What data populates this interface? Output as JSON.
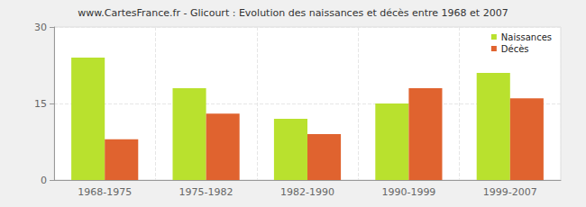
{
  "chart_data": {
    "type": "bar",
    "title": "www.CartesFrance.fr - Glicourt : Evolution des naissances et décès entre 1968 et 2007",
    "categories": [
      "1968-1975",
      "1975-1982",
      "1982-1990",
      "1990-1999",
      "1999-2007"
    ],
    "series": [
      {
        "name": "Naissances",
        "color": "#b9e12e",
        "values": [
          24,
          18,
          12,
          15,
          21
        ]
      },
      {
        "name": "Décès",
        "color": "#e0632f",
        "values": [
          8,
          13,
          9,
          18,
          16
        ]
      }
    ],
    "ylim": [
      0,
      30
    ],
    "yticks": [
      0,
      15,
      30
    ],
    "grid": true,
    "legend": "top-right"
  }
}
